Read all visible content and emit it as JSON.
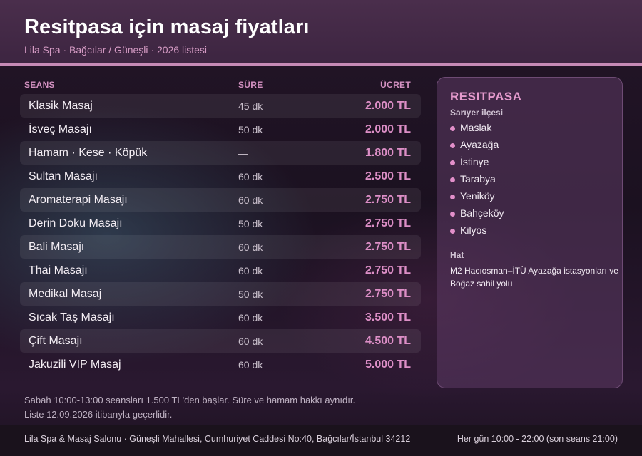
{
  "header": {
    "title": "Resitpasa için masaj fiyatları",
    "subtitle": "Lila Spa · Bağcılar / Güneşli · 2026 listesi"
  },
  "table": {
    "columns": {
      "name": "SEANS",
      "duration": "SÜRE",
      "price": "ÜCRET"
    },
    "rows": [
      {
        "name": "Klasik Masaj",
        "duration": "45 dk",
        "price": "2.000 TL"
      },
      {
        "name": "İsveç Masajı",
        "duration": "50 dk",
        "price": "2.000 TL"
      },
      {
        "name": "Hamam · Kese · Köpük",
        "duration": "—",
        "price": "1.800 TL"
      },
      {
        "name": "Sultan Masajı",
        "duration": "60 dk",
        "price": "2.500 TL"
      },
      {
        "name": "Aromaterapi Masajı",
        "duration": "60 dk",
        "price": "2.750 TL"
      },
      {
        "name": "Derin Doku Masajı",
        "duration": "50 dk",
        "price": "2.750 TL"
      },
      {
        "name": "Bali Masajı",
        "duration": "60 dk",
        "price": "2.750 TL"
      },
      {
        "name": "Thai Masajı",
        "duration": "60 dk",
        "price": "2.750 TL"
      },
      {
        "name": "Medikal Masaj",
        "duration": "50 dk",
        "price": "2.750 TL"
      },
      {
        "name": "Sıcak Taş Masajı",
        "duration": "60 dk",
        "price": "3.500 TL"
      },
      {
        "name": "Çift Masajı",
        "duration": "60 dk",
        "price": "4.500 TL"
      },
      {
        "name": "Jakuzili VIP Masaj",
        "duration": "60 dk",
        "price": "5.000 TL"
      }
    ]
  },
  "panel": {
    "title": "RESITPASA",
    "district": "Sarıyer ilçesi",
    "places": [
      "Maslak",
      "Ayazağa",
      "İstinye",
      "Tarabya",
      "Yeniköy",
      "Bahçeköy",
      "Kilyos"
    ],
    "hat_label": "Hat",
    "hat_text": "M2 Hacıosman–İTÜ Ayazağa istasyonları ve Boğaz sahil yolu"
  },
  "note": {
    "line1": "Sabah 10:00-13:00 seansları 1.500 TL'den başlar. Süre ve hamam hakkı aynıdır.",
    "line2": "Liste 12.09.2026 itibarıyla geçerlidir."
  },
  "footer": {
    "address": "Lila Spa & Masaj Salonu · Güneşli Mahallesi, Cumhuriyet Caddesi No:40, Bağcılar/İstanbul 34212",
    "hours": "Her gün 10:00 - 22:00 (son seans 21:00)"
  },
  "colors": {
    "accent": "#dd8fc7",
    "header_bg": "#4a2e4c",
    "rule": "#c68ab6"
  }
}
